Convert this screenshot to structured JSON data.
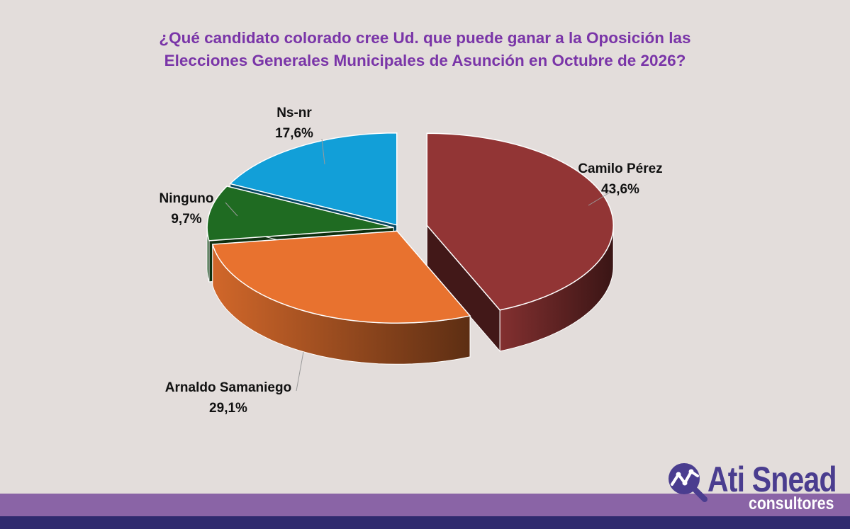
{
  "chart_data": {
    "type": "pie",
    "title": [
      "¿Qué candidato colorado cree Ud. que puede ganar a la Oposición las",
      "Elecciones Generales Municipales de Asunción en Octubre de 2026?"
    ],
    "slices": [
      {
        "name": "Camilo Pérez",
        "value": 43.6,
        "label": "43,6%",
        "color": "#923535",
        "exploded": true
      },
      {
        "name": "Arnaldo Samaniego",
        "value": 29.1,
        "label": "29,1%",
        "color": "#e8722f",
        "exploded": false
      },
      {
        "name": "Ninguno",
        "value": 9.7,
        "label": "9,7%",
        "color": "#1f6b22",
        "exploded": false
      },
      {
        "name": "Ns-nr",
        "value": 17.6,
        "label": "17,6%",
        "color": "#129fd8",
        "exploded": false
      }
    ],
    "style": "3d-exploded"
  },
  "logo": {
    "name": "Ati Snead",
    "sub": "consultores"
  }
}
